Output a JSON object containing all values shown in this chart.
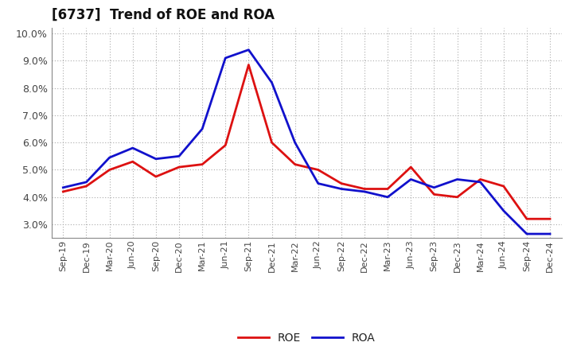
{
  "title": "[6737]  Trend of ROE and ROA",
  "ylim": [
    2.5,
    10.2
  ],
  "yticks": [
    3.0,
    4.0,
    5.0,
    6.0,
    7.0,
    8.0,
    9.0,
    10.0
  ],
  "background_color": "#ffffff",
  "plot_bg_color": "#ffffff",
  "grid_color": "#aaaaaa",
  "labels": [
    "Sep-19",
    "Dec-19",
    "Mar-20",
    "Jun-20",
    "Sep-20",
    "Dec-20",
    "Mar-21",
    "Jun-21",
    "Sep-21",
    "Dec-21",
    "Mar-22",
    "Jun-22",
    "Sep-22",
    "Dec-22",
    "Mar-23",
    "Jun-23",
    "Sep-23",
    "Dec-23",
    "Mar-24",
    "Jun-24",
    "Sep-24",
    "Dec-24"
  ],
  "ROE": [
    4.2,
    4.4,
    5.0,
    5.3,
    4.75,
    5.1,
    5.2,
    5.9,
    8.85,
    6.0,
    5.2,
    5.0,
    4.5,
    4.3,
    4.3,
    5.1,
    4.1,
    4.0,
    4.65,
    4.4,
    3.2,
    3.2
  ],
  "ROA": [
    4.35,
    4.55,
    5.45,
    5.8,
    5.4,
    5.5,
    6.5,
    9.1,
    9.4,
    8.2,
    6.0,
    4.5,
    4.3,
    4.2,
    4.0,
    4.65,
    4.35,
    4.65,
    4.55,
    3.5,
    2.65,
    2.65
  ],
  "roe_color": "#dd1111",
  "roa_color": "#1111cc",
  "line_width": 2.0,
  "title_fontsize": 12,
  "tick_fontsize": 8,
  "legend_fontsize": 10
}
